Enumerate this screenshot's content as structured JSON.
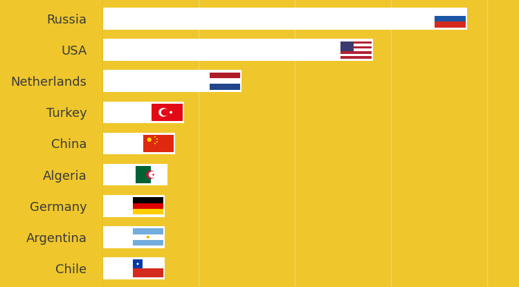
{
  "chart_data": {
    "type": "bar",
    "orientation": "horizontal",
    "categories": [
      "Russia",
      "USA",
      "Netherlands",
      "Turkey",
      "China",
      "Algeria",
      "Germany",
      "Argentina",
      "Chile"
    ],
    "values": [
      3.79,
      2.81,
      1.45,
      0.85,
      0.76,
      0.68,
      0.65,
      0.65,
      0.65
    ],
    "color": "#ffffff",
    "xlim": [
      0,
      4.33
    ],
    "xticks": [
      0,
      1,
      2,
      3,
      4
    ],
    "grid": true,
    "tick_labels": "y"
  }
}
